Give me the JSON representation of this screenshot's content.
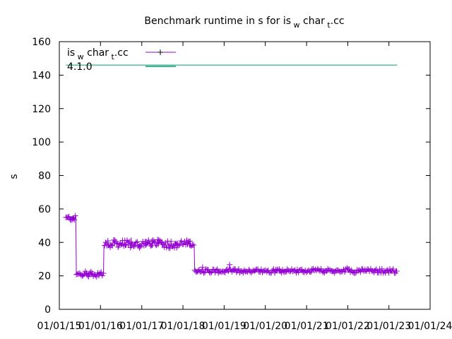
{
  "chart_data": {
    "type": "line",
    "title": "Benchmark runtime in s for is_w char_t.cc",
    "ylabel": "s",
    "xlabel": "",
    "ylim": [
      0,
      160
    ],
    "yticks": [
      0,
      20,
      40,
      60,
      80,
      100,
      120,
      140,
      160
    ],
    "xlim": [
      "2015-01-01",
      "2024-01-01"
    ],
    "xticks": [
      "01/01/15",
      "01/01/16",
      "01/01/17",
      "01/01/18",
      "01/01/19",
      "01/01/20",
      "01/01/21",
      "01/01/22",
      "01/01/23",
      "01/01/24"
    ],
    "grid": false,
    "legend_position": "top-left",
    "series": [
      {
        "name": "is_w char_t.cc",
        "color": "#9400d3",
        "marker": "plus",
        "segments": [
          {
            "from": "2015-03-01",
            "to": "2015-06-01",
            "level": 54.5,
            "noise": 1.5
          },
          {
            "from": "2015-06-01",
            "to": "2016-02-01",
            "level": 21,
            "noise": 1.5
          },
          {
            "from": "2016-02-01",
            "to": "2018-04-15",
            "level": 39,
            "noise": 2.5
          },
          {
            "from": "2018-04-15",
            "to": "2023-03-15",
            "level": 23,
            "noise": 1.3
          }
        ]
      },
      {
        "name": "4.1.0",
        "color": "#009e73",
        "marker": "none",
        "constant": 146,
        "from": "2015-03-01",
        "to": "2023-03-15"
      }
    ]
  }
}
